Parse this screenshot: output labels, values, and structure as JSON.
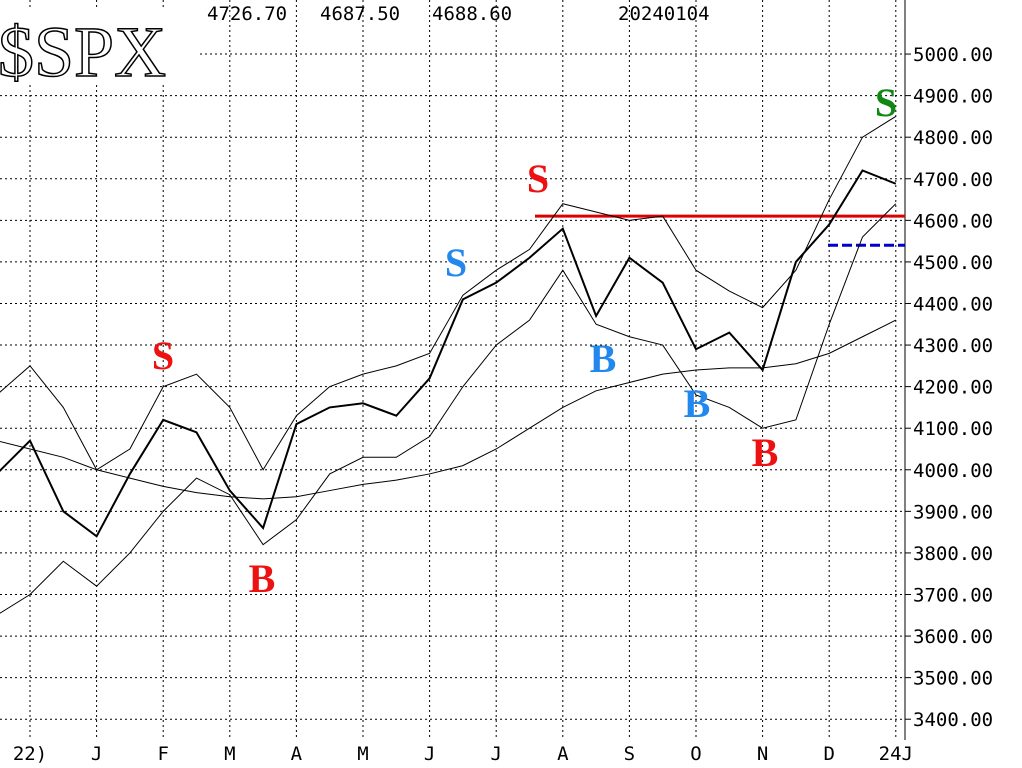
{
  "chart_data": {
    "type": "line",
    "title": "$SPX",
    "header_values": [
      "4726.70",
      "4687.50",
      "4688.60"
    ],
    "date": "20240104",
    "categories": [
      null,
      "22)",
      null,
      "J",
      null,
      "F",
      null,
      "M",
      null,
      "A",
      null,
      "M",
      null,
      "J",
      null,
      "J",
      null,
      "A",
      null,
      "S",
      null,
      "O",
      null,
      "N",
      null,
      "D",
      null,
      "24J"
    ],
    "series": [
      {
        "color": "#000000",
        "width": 2,
        "values": [
          3990,
          4070,
          3900,
          3840,
          3990,
          4120,
          4090,
          3950,
          3860,
          4110,
          4150,
          4160,
          4130,
          4220,
          4410,
          4450,
          4510,
          4580,
          4370,
          4510,
          4450,
          4290,
          4330,
          4240,
          4500,
          4590,
          4720,
          4688
        ]
      },
      {
        "color": "#000000",
        "width": 1,
        "values": [
          4180,
          4250,
          4150,
          4000,
          4050,
          4200,
          4230,
          4150,
          4000,
          4130,
          4200,
          4230,
          4250,
          4280,
          4420,
          4480,
          4530,
          4640,
          4620,
          4600,
          4610,
          4480,
          4430,
          4390,
          4480,
          4650,
          4800,
          4850
        ]
      },
      {
        "color": "#000000",
        "width": 1,
        "values": [
          3650,
          3700,
          3780,
          3720,
          3800,
          3900,
          3980,
          3940,
          3820,
          3880,
          3990,
          4030,
          4030,
          4080,
          4200,
          4300,
          4360,
          4480,
          4350,
          4320,
          4300,
          4180,
          4150,
          4100,
          4120,
          4350,
          4560,
          4640
        ]
      },
      {
        "color": "#000000",
        "width": 1,
        "values": [
          4070,
          4050,
          4030,
          4000,
          3980,
          3960,
          3945,
          3935,
          3930,
          3935,
          3950,
          3965,
          3975,
          3990,
          4010,
          4050,
          4100,
          4150,
          4190,
          4210,
          4230,
          4240,
          4245,
          4245,
          4255,
          4280,
          4320,
          4360
        ]
      }
    ],
    "hlines": [
      {
        "value": 4610,
        "color": "#dd0000",
        "dash": false
      },
      {
        "value": 4540,
        "color": "#0000cc",
        "dash": true
      }
    ],
    "signals": [
      {
        "text": "S",
        "color": "#ee1111"
      },
      {
        "text": "B",
        "color": "#ee1111"
      },
      {
        "text": "S",
        "color": "#2288ee"
      },
      {
        "text": "S",
        "color": "#ee1111"
      },
      {
        "text": "B",
        "color": "#2288ee"
      },
      {
        "text": "B",
        "color": "#2288ee"
      },
      {
        "text": "B",
        "color": "#ee1111"
      },
      {
        "text": "S",
        "color": "#118811"
      }
    ],
    "ylim": [
      3350,
      5130
    ],
    "yticks": [
      {
        "value": 3400,
        "label": "3400.00"
      },
      {
        "value": 3500,
        "label": "3500.00"
      },
      {
        "value": 3600,
        "label": "3600.00"
      },
      {
        "value": 3700,
        "label": "3700.00"
      },
      {
        "value": 3800,
        "label": "3800.00"
      },
      {
        "value": 3900,
        "label": "3900.00"
      },
      {
        "value": 4000,
        "label": "4000.00"
      },
      {
        "value": 4100,
        "label": "4100.00"
      },
      {
        "value": 4200,
        "label": "4200.00"
      },
      {
        "value": 4300,
        "label": "4300.00"
      },
      {
        "value": 4400,
        "label": "4400.00"
      },
      {
        "value": 4500,
        "label": "4500.00"
      },
      {
        "value": 4600,
        "label": "4600.00"
      },
      {
        "value": 4700,
        "label": "4700.00"
      },
      {
        "value": 4800,
        "label": "4800.00"
      },
      {
        "value": 4900,
        "label": "4900.00"
      },
      {
        "value": 5000,
        "label": "5000.00"
      }
    ],
    "grid": true
  }
}
